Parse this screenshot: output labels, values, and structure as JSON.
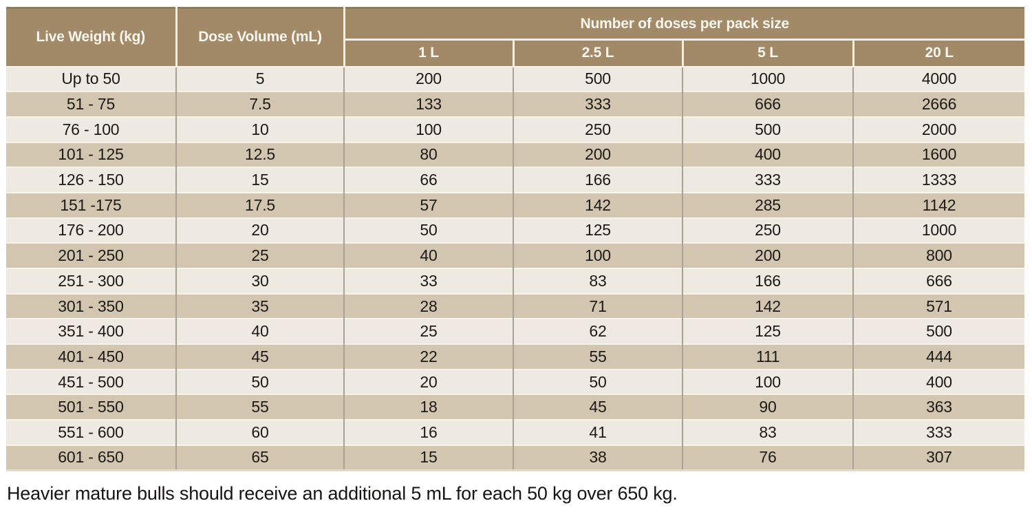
{
  "table": {
    "col_live_weight_header": "Live Weight (kg)",
    "col_dose_volume_header": "Dose Volume (mL)",
    "group_header": "Number of doses per pack size",
    "pack_sizes": [
      "1 L",
      "2.5 L",
      "5 L",
      "20 L"
    ],
    "rows": [
      {
        "weight": "Up to 50",
        "dose": "5",
        "doses": [
          "200",
          "500",
          "1000",
          "4000"
        ]
      },
      {
        "weight": "51 - 75",
        "dose": "7.5",
        "doses": [
          "133",
          "333",
          "666",
          "2666"
        ]
      },
      {
        "weight": "76 - 100",
        "dose": "10",
        "doses": [
          "100",
          "250",
          "500",
          "2000"
        ]
      },
      {
        "weight": "101 - 125",
        "dose": "12.5",
        "doses": [
          "80",
          "200",
          "400",
          "1600"
        ]
      },
      {
        "weight": "126 - 150",
        "dose": "15",
        "doses": [
          "66",
          "166",
          "333",
          "1333"
        ]
      },
      {
        "weight": "151 -175",
        "dose": "17.5",
        "doses": [
          "57",
          "142",
          "285",
          "1142"
        ]
      },
      {
        "weight": "176 - 200",
        "dose": "20",
        "doses": [
          "50",
          "125",
          "250",
          "1000"
        ]
      },
      {
        "weight": "201 - 250",
        "dose": "25",
        "doses": [
          "40",
          "100",
          "200",
          "800"
        ]
      },
      {
        "weight": "251 - 300",
        "dose": "30",
        "doses": [
          "33",
          "83",
          "166",
          "666"
        ]
      },
      {
        "weight": "301 - 350",
        "dose": "35",
        "doses": [
          "28",
          "71",
          "142",
          "571"
        ]
      },
      {
        "weight": "351 - 400",
        "dose": "40",
        "doses": [
          "25",
          "62",
          "125",
          "500"
        ]
      },
      {
        "weight": "401 - 450",
        "dose": "45",
        "doses": [
          "22",
          "55",
          "111",
          "444"
        ]
      },
      {
        "weight": "451 - 500",
        "dose": "50",
        "doses": [
          "20",
          "50",
          "100",
          "400"
        ]
      },
      {
        "weight": "501 - 550",
        "dose": "55",
        "doses": [
          "18",
          "45",
          "90",
          "363"
        ]
      },
      {
        "weight": "551 - 600",
        "dose": "60",
        "doses": [
          "16",
          "41",
          "83",
          "333"
        ]
      },
      {
        "weight": "601 - 650",
        "dose": "65",
        "doses": [
          "15",
          "38",
          "76",
          "307"
        ]
      }
    ]
  },
  "footnote": "Heavier mature bulls should receive an additional 5 mL for each 50 kg over 650 kg.",
  "colors": {
    "header_background": "#a28a68",
    "header_text": "#f9f6ee",
    "row_light": "#eeeae2",
    "row_dark": "#d2c6b0",
    "body_text": "#1c1a16",
    "column_divider": "#a9a294",
    "row_divider": "#f7f4ec"
  }
}
